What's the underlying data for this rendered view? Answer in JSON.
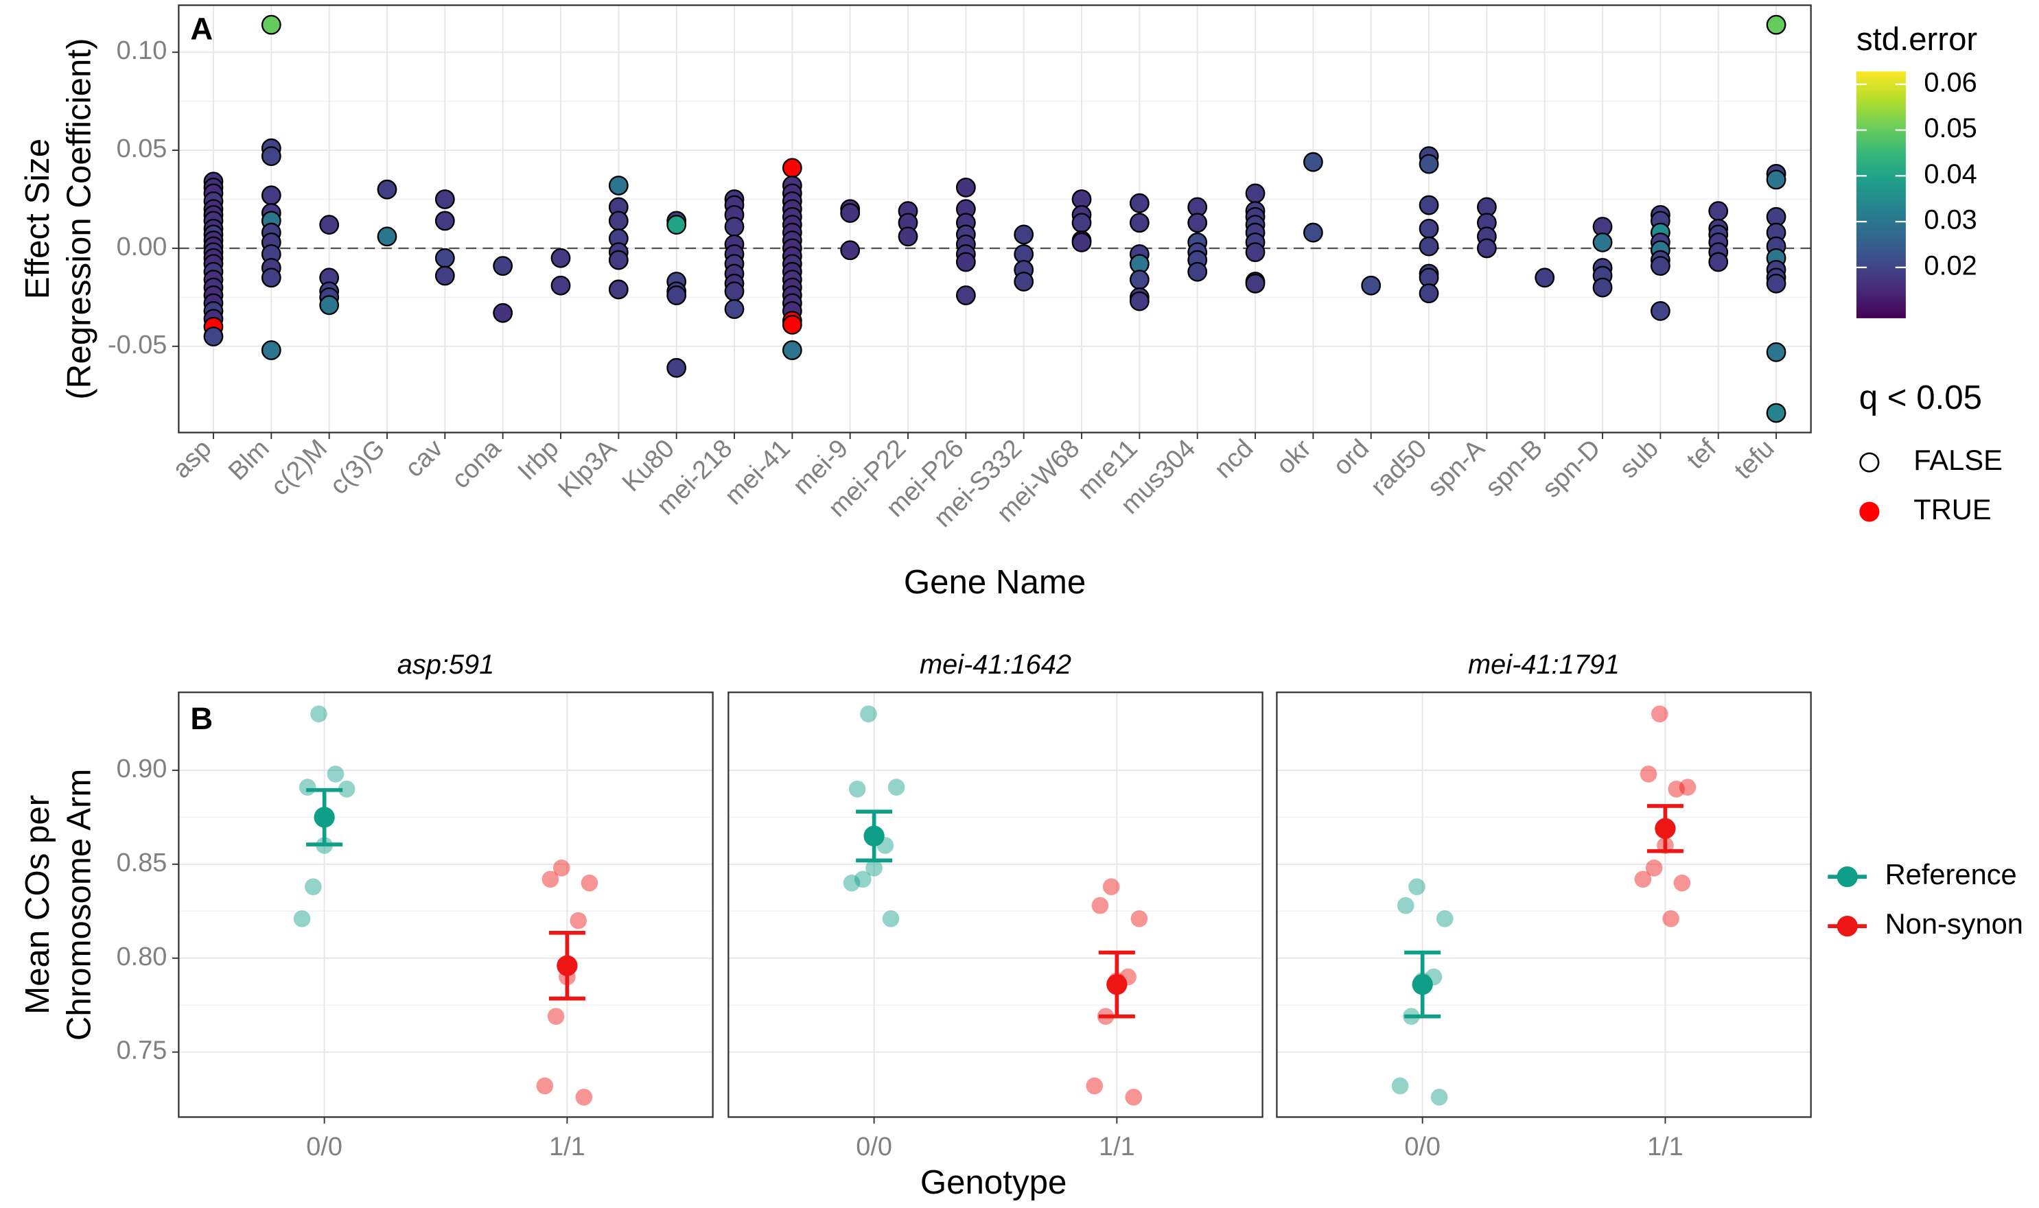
{
  "chart_data": [
    {
      "type": "scatter",
      "label": "A",
      "ylabel": [
        "Effect Size",
        "(Regression Coefficient)"
      ],
      "xlabel": "Gene Name",
      "categories": [
        "asp",
        "Blm",
        "c(2)M",
        "c(3)G",
        "cav",
        "cona",
        "Irbp",
        "Klp3A",
        "Ku80",
        "mei-218",
        "mei-41",
        "mei-9",
        "mei-P22",
        "mei-P26",
        "mei-S332",
        "mei-W68",
        "mre11",
        "mus304",
        "ncd",
        "okr",
        "ord",
        "rad50",
        "spn-A",
        "spn-B",
        "spn-D",
        "sub",
        "tef",
        "tefu"
      ],
      "ylim": [
        -0.094,
        0.124
      ],
      "yticks": [
        -0.05,
        {
          "value": 0,
          "label": "0.00"
        },
        0.05,
        {
          "value": 0.1,
          "label": "0.10"
        }
      ],
      "hline": 0,
      "grid": true,
      "series": [
        {
          "name": "asp",
          "values": [
            0.034,
            0.031,
            0.028,
            0.024,
            0.02,
            0.017,
            0.014,
            0.01,
            0.007,
            0.004,
            0.001,
            -0.002,
            -0.005,
            -0.008,
            -0.012,
            -0.016,
            -0.02,
            -0.024,
            -0.028,
            -0.032,
            -0.036,
            -0.04,
            -0.045
          ],
          "std_error": [
            0.017,
            0.016,
            0.016,
            0.018,
            0.016,
            0.016,
            0.017,
            0.016,
            0.019,
            0.016,
            0.016,
            0.017,
            0.016,
            0.016,
            0.018,
            0.016,
            0.017,
            0.016,
            0.016,
            0.019,
            0.016,
            0.017,
            0.02
          ],
          "significant": [
            false,
            false,
            false,
            false,
            false,
            false,
            false,
            false,
            false,
            false,
            false,
            false,
            false,
            false,
            false,
            false,
            false,
            false,
            false,
            false,
            false,
            true,
            false
          ]
        },
        {
          "name": "Blm",
          "values": [
            0.114,
            0.051,
            0.047,
            0.027,
            0.018,
            0.014,
            0.008,
            0.003,
            -0.003,
            -0.01,
            -0.015,
            -0.052
          ],
          "std_error": [
            0.05,
            0.02,
            0.02,
            0.018,
            0.018,
            0.03,
            0.019,
            0.018,
            0.019,
            0.018,
            0.019,
            0.03
          ],
          "significant": [
            false,
            false,
            false,
            false,
            false,
            false,
            false,
            false,
            false,
            false,
            false,
            false
          ]
        },
        {
          "name": "c(2)M",
          "values": [
            0.012,
            -0.015,
            -0.022,
            -0.025,
            -0.029
          ],
          "std_error": [
            0.018,
            0.018,
            0.019,
            0.019,
            0.03
          ],
          "significant": [
            false,
            false,
            false,
            false,
            false
          ]
        },
        {
          "name": "c(3)G",
          "values": [
            0.03,
            0.006
          ],
          "std_error": [
            0.019,
            0.03
          ],
          "significant": [
            false,
            false
          ]
        },
        {
          "name": "cav",
          "values": [
            0.025,
            0.014,
            -0.005,
            -0.014
          ],
          "std_error": [
            0.018,
            0.018,
            0.02,
            0.019
          ],
          "significant": [
            false,
            false,
            false,
            false
          ]
        },
        {
          "name": "cona",
          "values": [
            -0.009,
            -0.033
          ],
          "std_error": [
            0.019,
            0.017
          ],
          "significant": [
            false,
            false
          ]
        },
        {
          "name": "Irbp",
          "values": [
            -0.005,
            -0.019
          ],
          "std_error": [
            0.018,
            0.018
          ],
          "significant": [
            false,
            false
          ]
        },
        {
          "name": "Klp3A",
          "values": [
            0.032,
            0.021,
            0.014,
            0.005,
            -0.002,
            -0.006,
            -0.021
          ],
          "std_error": [
            0.03,
            0.018,
            0.018,
            0.019,
            0.018,
            0.018,
            0.018
          ],
          "significant": [
            false,
            false,
            false,
            false,
            false,
            false,
            false
          ]
        },
        {
          "name": "Ku80",
          "values": [
            0.014,
            0.012,
            -0.017,
            -0.022,
            -0.024,
            -0.061
          ],
          "std_error": [
            0.019,
            0.04,
            0.02,
            0.019,
            0.019,
            0.019
          ],
          "significant": [
            false,
            false,
            false,
            false,
            false,
            false
          ]
        },
        {
          "name": "mei-218",
          "values": [
            0.025,
            0.022,
            0.017,
            0.011,
            0.002,
            -0.003,
            -0.008,
            -0.013,
            -0.018,
            -0.022,
            -0.031
          ],
          "std_error": [
            0.017,
            0.017,
            0.017,
            0.018,
            0.017,
            0.017,
            0.018,
            0.017,
            0.017,
            0.018,
            0.02
          ],
          "significant": [
            false,
            false,
            false,
            false,
            false,
            false,
            false,
            false,
            false,
            false,
            false
          ]
        },
        {
          "name": "mei-41",
          "values": [
            0.041,
            0.032,
            0.028,
            0.024,
            0.02,
            0.016,
            0.012,
            0.008,
            0.004,
            0,
            -0.004,
            -0.008,
            -0.012,
            -0.016,
            -0.02,
            -0.024,
            -0.028,
            -0.032,
            -0.037,
            -0.039,
            -0.052
          ],
          "std_error": [
            0.017,
            0.017,
            0.016,
            0.017,
            0.016,
            0.017,
            0.016,
            0.016,
            0.017,
            0.016,
            0.016,
            0.017,
            0.016,
            0.017,
            0.016,
            0.016,
            0.017,
            0.016,
            0.017,
            0.017,
            0.03
          ],
          "significant": [
            true,
            false,
            false,
            false,
            false,
            false,
            false,
            false,
            false,
            false,
            false,
            false,
            false,
            false,
            false,
            false,
            false,
            false,
            true,
            true,
            false
          ]
        },
        {
          "name": "mei-9",
          "values": [
            0.02,
            0.018,
            -0.001
          ],
          "std_error": [
            0.017,
            0.017,
            0.017
          ],
          "significant": [
            false,
            false,
            false
          ]
        },
        {
          "name": "mei-P22",
          "values": [
            0.019,
            0.013,
            0.006
          ],
          "std_error": [
            0.017,
            0.017,
            0.017
          ],
          "significant": [
            false,
            false,
            false
          ]
        },
        {
          "name": "mei-P26",
          "values": [
            0.031,
            0.02,
            0.013,
            0.007,
            0.002,
            -0.003,
            -0.007,
            -0.024
          ],
          "std_error": [
            0.017,
            0.017,
            0.017,
            0.018,
            0.017,
            0.018,
            0.017,
            0.018
          ],
          "significant": [
            false,
            false,
            false,
            false,
            false,
            false,
            false,
            false
          ]
        },
        {
          "name": "mei-S332",
          "values": [
            0.007,
            -0.003,
            -0.011,
            -0.017
          ],
          "std_error": [
            0.019,
            0.019,
            0.019,
            0.019
          ],
          "significant": [
            false,
            false,
            false,
            false
          ]
        },
        {
          "name": "mei-W68",
          "values": [
            0.025,
            0.017,
            0.013,
            0.004,
            0.003
          ],
          "std_error": [
            0.017,
            0.017,
            0.018,
            0.017,
            0.017
          ],
          "significant": [
            false,
            false,
            false,
            false,
            false
          ]
        },
        {
          "name": "mre11",
          "values": [
            0.023,
            0.013,
            -0.003,
            -0.008,
            -0.016,
            -0.025,
            -0.027
          ],
          "std_error": [
            0.018,
            0.018,
            0.019,
            0.03,
            0.02,
            0.018,
            0.018
          ],
          "significant": [
            false,
            false,
            false,
            false,
            false,
            false,
            false
          ]
        },
        {
          "name": "mus304",
          "values": [
            0.021,
            0.013,
            0.003,
            -0.002,
            -0.006,
            -0.012
          ],
          "std_error": [
            0.018,
            0.018,
            0.021,
            0.02,
            0.02,
            0.019
          ],
          "significant": [
            false,
            false,
            false,
            false,
            false,
            false
          ]
        },
        {
          "name": "ncd",
          "values": [
            0.028,
            0.019,
            0.016,
            0.012,
            0.008,
            0.003,
            -0.002,
            -0.017,
            -0.018
          ],
          "std_error": [
            0.018,
            0.019,
            0.018,
            0.019,
            0.018,
            0.019,
            0.018,
            0.018,
            0.018
          ],
          "significant": [
            false,
            false,
            false,
            false,
            false,
            false,
            false,
            false,
            false
          ]
        },
        {
          "name": "okr",
          "values": [
            0.044,
            0.008
          ],
          "std_error": [
            0.022,
            0.021
          ],
          "significant": [
            false,
            false
          ]
        },
        {
          "name": "ord",
          "values": [
            -0.019
          ],
          "std_error": [
            0.021
          ],
          "significant": [
            false
          ]
        },
        {
          "name": "rad50",
          "values": [
            0.047,
            0.043,
            0.022,
            0.01,
            0.001,
            -0.013,
            -0.015,
            -0.023
          ],
          "std_error": [
            0.019,
            0.022,
            0.019,
            0.019,
            0.019,
            0.019,
            0.019,
            0.019
          ],
          "significant": [
            false,
            false,
            false,
            false,
            false,
            false,
            false,
            false
          ]
        },
        {
          "name": "spn-A",
          "values": [
            0.021,
            0.013,
            0.006,
            0
          ],
          "std_error": [
            0.018,
            0.018,
            0.018,
            0.018
          ],
          "significant": [
            false,
            false,
            false,
            false
          ]
        },
        {
          "name": "spn-B",
          "values": [
            -0.015
          ],
          "std_error": [
            0.019
          ],
          "significant": [
            false
          ]
        },
        {
          "name": "spn-D",
          "values": [
            0.011,
            0.003,
            -0.01,
            -0.014,
            -0.02
          ],
          "std_error": [
            0.018,
            0.03,
            0.019,
            0.019,
            0.019
          ],
          "significant": [
            false,
            false,
            false,
            false,
            false
          ]
        },
        {
          "name": "sub",
          "values": [
            0.017,
            0.014,
            0.008,
            0.003,
            -0.001,
            -0.006,
            -0.009,
            -0.032
          ],
          "std_error": [
            0.019,
            0.019,
            0.035,
            0.019,
            0.03,
            0.019,
            0.019,
            0.02
          ],
          "significant": [
            false,
            false,
            false,
            false,
            false,
            false,
            false,
            false
          ]
        },
        {
          "name": "tef",
          "values": [
            0.019,
            0.01,
            0.007,
            0.003,
            -0.002,
            -0.007
          ],
          "std_error": [
            0.018,
            0.018,
            0.019,
            0.018,
            0.018,
            0.018
          ],
          "significant": [
            false,
            false,
            false,
            false,
            false,
            false
          ]
        },
        {
          "name": "tefu",
          "values": [
            0.114,
            0.038,
            0.035,
            0.016,
            0.008,
            0.001,
            -0.005,
            -0.011,
            -0.015,
            -0.018,
            -0.053,
            -0.084
          ],
          "std_error": [
            0.05,
            0.019,
            0.03,
            0.019,
            0.019,
            0.019,
            0.03,
            0.019,
            0.019,
            0.019,
            0.03,
            0.033
          ],
          "significant": [
            false,
            false,
            false,
            false,
            false,
            false,
            false,
            false,
            false,
            false,
            false,
            false
          ]
        }
      ],
      "colorbar": {
        "title": "std.error",
        "colormap": "viridis",
        "lim": [
          0.0089,
          0.0628
        ],
        "ticks": [
          0.02,
          0.03,
          0.04,
          0.05,
          0.06
        ]
      },
      "shape_legend": {
        "title": "q < 0.05",
        "labels": [
          "FALSE",
          "TRUE"
        ],
        "significant_color": "#ff0000"
      }
    },
    {
      "type": "dot_errorbar",
      "label": "B",
      "ylabel": [
        "Mean COs per",
        "Chromosome Arm"
      ],
      "xlabel": "Genotype",
      "categories": [
        "0/0",
        "1/1"
      ],
      "ylim": [
        0.7154,
        0.9415
      ],
      "yticks": [
        0.75,
        {
          "value": 0.8,
          "label": "0.80"
        },
        0.85,
        {
          "value": 0.9,
          "label": "0.90"
        }
      ],
      "grid": true,
      "series": [
        {
          "name": "Reference",
          "color": "#0f9e87"
        },
        {
          "name": "Non-synon",
          "color": "#ee1515"
        }
      ],
      "facets": [
        {
          "title": "asp:591",
          "points": [
            [
              0.93,
              0.891,
              0.89,
              0.898,
              0.86,
              0.838,
              0.821
            ],
            [
              0.848,
              0.842,
              0.84,
              0.82,
              0.79,
              0.769,
              0.732,
              0.726
            ]
          ],
          "means": [
            0.875,
            0.796
          ],
          "errors": [
            0.0145,
            0.0175
          ]
        },
        {
          "title": "mei-41:1642",
          "points": [
            [
              0.93,
              0.89,
              0.891,
              0.86,
              0.848,
              0.842,
              0.84,
              0.821
            ],
            [
              0.838,
              0.828,
              0.821,
              0.79,
              0.788,
              0.769,
              0.732,
              0.726
            ]
          ],
          "means": [
            0.865,
            0.786
          ],
          "errors": [
            0.013,
            0.017
          ]
        },
        {
          "title": "mei-41:1791",
          "points": [
            [
              0.838,
              0.828,
              0.821,
              0.79,
              0.788,
              0.769,
              0.732,
              0.726
            ],
            [
              0.93,
              0.898,
              0.891,
              0.89,
              0.86,
              0.848,
              0.842,
              0.84,
              0.821
            ]
          ],
          "means": [
            0.786,
            0.869
          ],
          "errors": [
            0.017,
            0.012
          ]
        }
      ]
    }
  ]
}
